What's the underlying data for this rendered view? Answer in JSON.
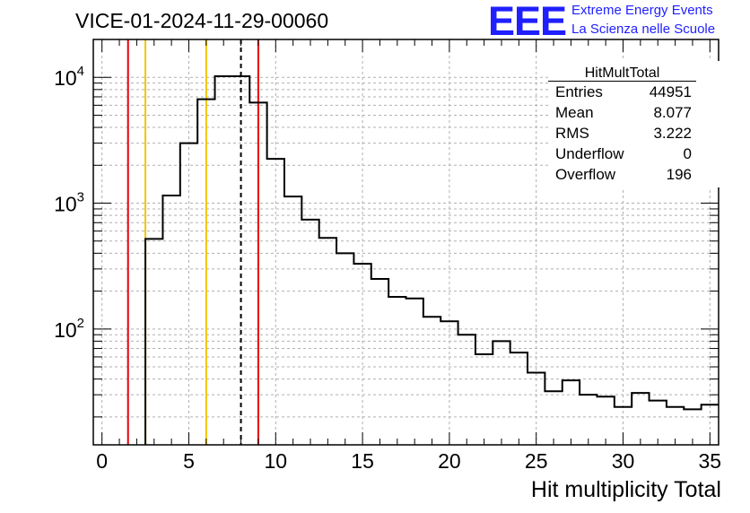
{
  "header": {
    "run_title": "VICE-01-2024-11-29-00060",
    "logo_text": "EEE",
    "logo_line1": "Extreme Energy Events",
    "logo_line2": "La Scienza nelle Scuole"
  },
  "stats_box": {
    "title": "HitMultTotal",
    "entries_label": "Entries",
    "entries_value": "44951",
    "mean_label": "Mean",
    "mean_value": "8.077",
    "rms_label": "RMS",
    "rms_value": "3.222",
    "underflow_label": "Underflow",
    "underflow_value": "0",
    "overflow_label": "Overflow",
    "overflow_value": "196"
  },
  "colors": {
    "histogram": "#000000",
    "red_line": "#e8000b",
    "yellow_line": "#f5c400",
    "logo": "#1f1fff",
    "grid": "#b0b0b0"
  },
  "chart_data": {
    "type": "histogram",
    "title": "VICE-01-2024-11-29-00060",
    "xlabel": "Hit multiplicity Total",
    "ylabel": "",
    "xlim": [
      -0.5,
      35.5
    ],
    "ylim_log": [
      12,
      20000
    ],
    "yscale": "log",
    "grid": true,
    "bin_edges": [
      2.5,
      3.5,
      4.5,
      5.5,
      6.5,
      7.5,
      8.5,
      9.5,
      10.5,
      11.5,
      12.5,
      13.5,
      14.5,
      15.5,
      16.5,
      17.5,
      18.5,
      19.5,
      20.5,
      21.5,
      22.5,
      23.5,
      24.5,
      25.5,
      26.5,
      27.5,
      28.5,
      29.5,
      30.5,
      31.5,
      32.5,
      33.5,
      34.5,
      35.5
    ],
    "counts": [
      520,
      1150,
      3000,
      6700,
      10200,
      10200,
      6300,
      2250,
      1130,
      740,
      530,
      400,
      330,
      250,
      180,
      175,
      125,
      115,
      90,
      63,
      80,
      65,
      45,
      32,
      39,
      30,
      29,
      24,
      31,
      27,
      24,
      23,
      25
    ],
    "xticks": [
      0,
      5,
      10,
      15,
      20,
      25,
      30,
      35
    ],
    "ytick_labels": [
      {
        "value": 100,
        "label": "10",
        "exp": "2"
      },
      {
        "value": 1000,
        "label": "10",
        "exp": "3"
      },
      {
        "value": 10000,
        "label": "10",
        "exp": "4"
      }
    ],
    "vertical_lines": [
      {
        "x": 1.5,
        "color": "red",
        "style": "solid"
      },
      {
        "x": 2.5,
        "color": "yellow",
        "style": "solid"
      },
      {
        "x": 6.0,
        "color": "yellow",
        "style": "solid"
      },
      {
        "x": 8.0,
        "color": "black",
        "style": "dashed"
      },
      {
        "x": 9.0,
        "color": "red",
        "style": "solid"
      }
    ]
  }
}
